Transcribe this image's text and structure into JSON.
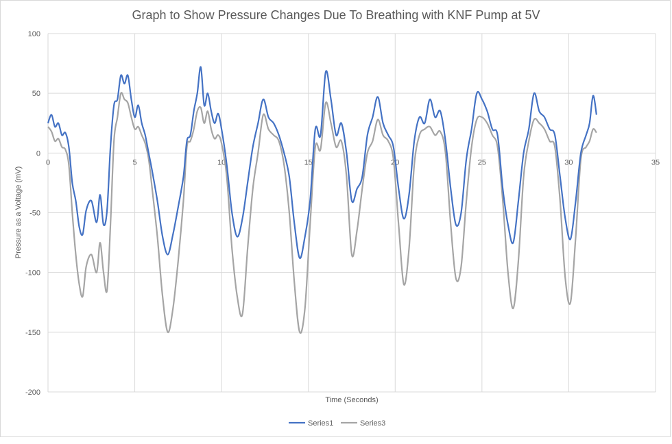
{
  "chart_data": {
    "type": "line",
    "title": "Graph to Show Pressure Changes Due To Breathing with KNF Pump at 5V",
    "xlabel": "Time (Seconds)",
    "ylabel": "Pressure as a Voltage (mV)",
    "xlim": [
      0,
      35
    ],
    "ylim": [
      -200,
      100
    ],
    "xticks": [
      0,
      5,
      10,
      15,
      20,
      25,
      30,
      35
    ],
    "yticks": [
      -200,
      -150,
      -100,
      -50,
      0,
      50,
      100
    ],
    "grid": true,
    "legend_position": "bottom",
    "series": [
      {
        "name": "Series1",
        "color": "#4472c4",
        "points": [
          [
            0,
            25
          ],
          [
            0.2,
            32
          ],
          [
            0.4,
            22
          ],
          [
            0.6,
            25
          ],
          [
            0.8,
            15
          ],
          [
            1.0,
            17
          ],
          [
            1.2,
            5
          ],
          [
            1.4,
            -25
          ],
          [
            1.6,
            -40
          ],
          [
            1.8,
            -62
          ],
          [
            2.0,
            -68
          ],
          [
            2.2,
            -48
          ],
          [
            2.5,
            -40
          ],
          [
            2.8,
            -58
          ],
          [
            3.0,
            -35
          ],
          [
            3.2,
            -60
          ],
          [
            3.4,
            -48
          ],
          [
            3.6,
            5
          ],
          [
            3.8,
            40
          ],
          [
            4.0,
            45
          ],
          [
            4.2,
            65
          ],
          [
            4.4,
            58
          ],
          [
            4.6,
            65
          ],
          [
            4.8,
            45
          ],
          [
            5.0,
            30
          ],
          [
            5.2,
            40
          ],
          [
            5.4,
            25
          ],
          [
            5.6,
            15
          ],
          [
            5.8,
            0
          ],
          [
            6.0,
            -15
          ],
          [
            6.3,
            -40
          ],
          [
            6.6,
            -70
          ],
          [
            6.9,
            -85
          ],
          [
            7.2,
            -68
          ],
          [
            7.5,
            -45
          ],
          [
            7.8,
            -20
          ],
          [
            8.0,
            10
          ],
          [
            8.2,
            15
          ],
          [
            8.4,
            35
          ],
          [
            8.6,
            50
          ],
          [
            8.8,
            72
          ],
          [
            9.0,
            40
          ],
          [
            9.2,
            50
          ],
          [
            9.4,
            35
          ],
          [
            9.6,
            25
          ],
          [
            9.8,
            33
          ],
          [
            10.0,
            20
          ],
          [
            10.3,
            -10
          ],
          [
            10.6,
            -50
          ],
          [
            10.9,
            -70
          ],
          [
            11.2,
            -55
          ],
          [
            11.5,
            -25
          ],
          [
            11.8,
            5
          ],
          [
            12.1,
            25
          ],
          [
            12.4,
            45
          ],
          [
            12.7,
            30
          ],
          [
            13.0,
            25
          ],
          [
            13.3,
            15
          ],
          [
            13.6,
            0
          ],
          [
            13.9,
            -20
          ],
          [
            14.2,
            -60
          ],
          [
            14.5,
            -88
          ],
          [
            14.8,
            -70
          ],
          [
            15.1,
            -40
          ],
          [
            15.4,
            20
          ],
          [
            15.7,
            15
          ],
          [
            16.0,
            68
          ],
          [
            16.3,
            45
          ],
          [
            16.6,
            15
          ],
          [
            16.9,
            25
          ],
          [
            17.2,
            0
          ],
          [
            17.5,
            -40
          ],
          [
            17.8,
            -30
          ],
          [
            18.1,
            -20
          ],
          [
            18.4,
            15
          ],
          [
            18.7,
            30
          ],
          [
            19.0,
            47
          ],
          [
            19.3,
            25
          ],
          [
            19.6,
            15
          ],
          [
            19.9,
            5
          ],
          [
            20.2,
            -30
          ],
          [
            20.5,
            -55
          ],
          [
            20.8,
            -35
          ],
          [
            21.1,
            10
          ],
          [
            21.4,
            30
          ],
          [
            21.7,
            25
          ],
          [
            22.0,
            45
          ],
          [
            22.3,
            30
          ],
          [
            22.6,
            35
          ],
          [
            22.9,
            10
          ],
          [
            23.2,
            -30
          ],
          [
            23.5,
            -60
          ],
          [
            23.8,
            -50
          ],
          [
            24.1,
            -5
          ],
          [
            24.4,
            20
          ],
          [
            24.7,
            50
          ],
          [
            25.0,
            45
          ],
          [
            25.3,
            35
          ],
          [
            25.6,
            20
          ],
          [
            25.9,
            15
          ],
          [
            26.2,
            -30
          ],
          [
            26.5,
            -60
          ],
          [
            26.8,
            -75
          ],
          [
            27.1,
            -40
          ],
          [
            27.4,
            0
          ],
          [
            27.7,
            20
          ],
          [
            28.0,
            50
          ],
          [
            28.3,
            35
          ],
          [
            28.6,
            30
          ],
          [
            28.9,
            20
          ],
          [
            29.2,
            15
          ],
          [
            29.5,
            -20
          ],
          [
            29.8,
            -55
          ],
          [
            30.1,
            -72
          ],
          [
            30.4,
            -40
          ],
          [
            30.7,
            0
          ],
          [
            31.0,
            15
          ],
          [
            31.2,
            25
          ],
          [
            31.4,
            48
          ],
          [
            31.6,
            32
          ]
        ]
      },
      {
        "name": "Series3",
        "color": "#a5a5a5",
        "points": [
          [
            0,
            22
          ],
          [
            0.2,
            18
          ],
          [
            0.4,
            10
          ],
          [
            0.6,
            12
          ],
          [
            0.8,
            5
          ],
          [
            1.0,
            3
          ],
          [
            1.2,
            -10
          ],
          [
            1.4,
            -50
          ],
          [
            1.6,
            -85
          ],
          [
            1.8,
            -110
          ],
          [
            2.0,
            -120
          ],
          [
            2.2,
            -95
          ],
          [
            2.5,
            -85
          ],
          [
            2.8,
            -100
          ],
          [
            3.0,
            -75
          ],
          [
            3.2,
            -100
          ],
          [
            3.4,
            -115
          ],
          [
            3.6,
            -60
          ],
          [
            3.8,
            10
          ],
          [
            4.0,
            30
          ],
          [
            4.2,
            50
          ],
          [
            4.4,
            45
          ],
          [
            4.6,
            42
          ],
          [
            4.8,
            30
          ],
          [
            5.0,
            20
          ],
          [
            5.2,
            22
          ],
          [
            5.4,
            15
          ],
          [
            5.6,
            8
          ],
          [
            5.8,
            -5
          ],
          [
            6.0,
            -30
          ],
          [
            6.3,
            -70
          ],
          [
            6.6,
            -120
          ],
          [
            6.9,
            -150
          ],
          [
            7.2,
            -130
          ],
          [
            7.5,
            -90
          ],
          [
            7.8,
            -40
          ],
          [
            8.0,
            5
          ],
          [
            8.2,
            10
          ],
          [
            8.4,
            20
          ],
          [
            8.6,
            35
          ],
          [
            8.8,
            38
          ],
          [
            9.0,
            25
          ],
          [
            9.2,
            35
          ],
          [
            9.4,
            20
          ],
          [
            9.6,
            12
          ],
          [
            9.8,
            15
          ],
          [
            10.0,
            8
          ],
          [
            10.3,
            -20
          ],
          [
            10.6,
            -80
          ],
          [
            10.9,
            -120
          ],
          [
            11.2,
            -135
          ],
          [
            11.5,
            -80
          ],
          [
            11.8,
            -30
          ],
          [
            12.1,
            0
          ],
          [
            12.4,
            32
          ],
          [
            12.7,
            20
          ],
          [
            13.0,
            15
          ],
          [
            13.3,
            10
          ],
          [
            13.6,
            -10
          ],
          [
            13.9,
            -50
          ],
          [
            14.2,
            -110
          ],
          [
            14.5,
            -150
          ],
          [
            14.8,
            -130
          ],
          [
            15.1,
            -60
          ],
          [
            15.4,
            5
          ],
          [
            15.7,
            3
          ],
          [
            16.0,
            42
          ],
          [
            16.3,
            25
          ],
          [
            16.6,
            5
          ],
          [
            16.9,
            10
          ],
          [
            17.2,
            -20
          ],
          [
            17.5,
            -85
          ],
          [
            17.8,
            -65
          ],
          [
            18.1,
            -30
          ],
          [
            18.4,
            0
          ],
          [
            18.7,
            10
          ],
          [
            19.0,
            28
          ],
          [
            19.3,
            15
          ],
          [
            19.6,
            10
          ],
          [
            19.9,
            -5
          ],
          [
            20.2,
            -60
          ],
          [
            20.5,
            -110
          ],
          [
            20.8,
            -80
          ],
          [
            21.1,
            -10
          ],
          [
            21.4,
            15
          ],
          [
            21.7,
            20
          ],
          [
            22.0,
            22
          ],
          [
            22.3,
            15
          ],
          [
            22.6,
            18
          ],
          [
            22.9,
            0
          ],
          [
            23.2,
            -60
          ],
          [
            23.5,
            -105
          ],
          [
            23.8,
            -95
          ],
          [
            24.1,
            -40
          ],
          [
            24.4,
            5
          ],
          [
            24.7,
            28
          ],
          [
            25.0,
            30
          ],
          [
            25.3,
            25
          ],
          [
            25.6,
            15
          ],
          [
            25.9,
            5
          ],
          [
            26.2,
            -40
          ],
          [
            26.5,
            -100
          ],
          [
            26.8,
            -130
          ],
          [
            27.1,
            -90
          ],
          [
            27.4,
            -20
          ],
          [
            27.7,
            10
          ],
          [
            28.0,
            28
          ],
          [
            28.3,
            25
          ],
          [
            28.6,
            20
          ],
          [
            28.9,
            10
          ],
          [
            29.2,
            5
          ],
          [
            29.5,
            -40
          ],
          [
            29.8,
            -105
          ],
          [
            30.1,
            -125
          ],
          [
            30.4,
            -70
          ],
          [
            30.7,
            -5
          ],
          [
            31.0,
            5
          ],
          [
            31.2,
            10
          ],
          [
            31.4,
            20
          ],
          [
            31.6,
            17
          ]
        ]
      }
    ]
  }
}
